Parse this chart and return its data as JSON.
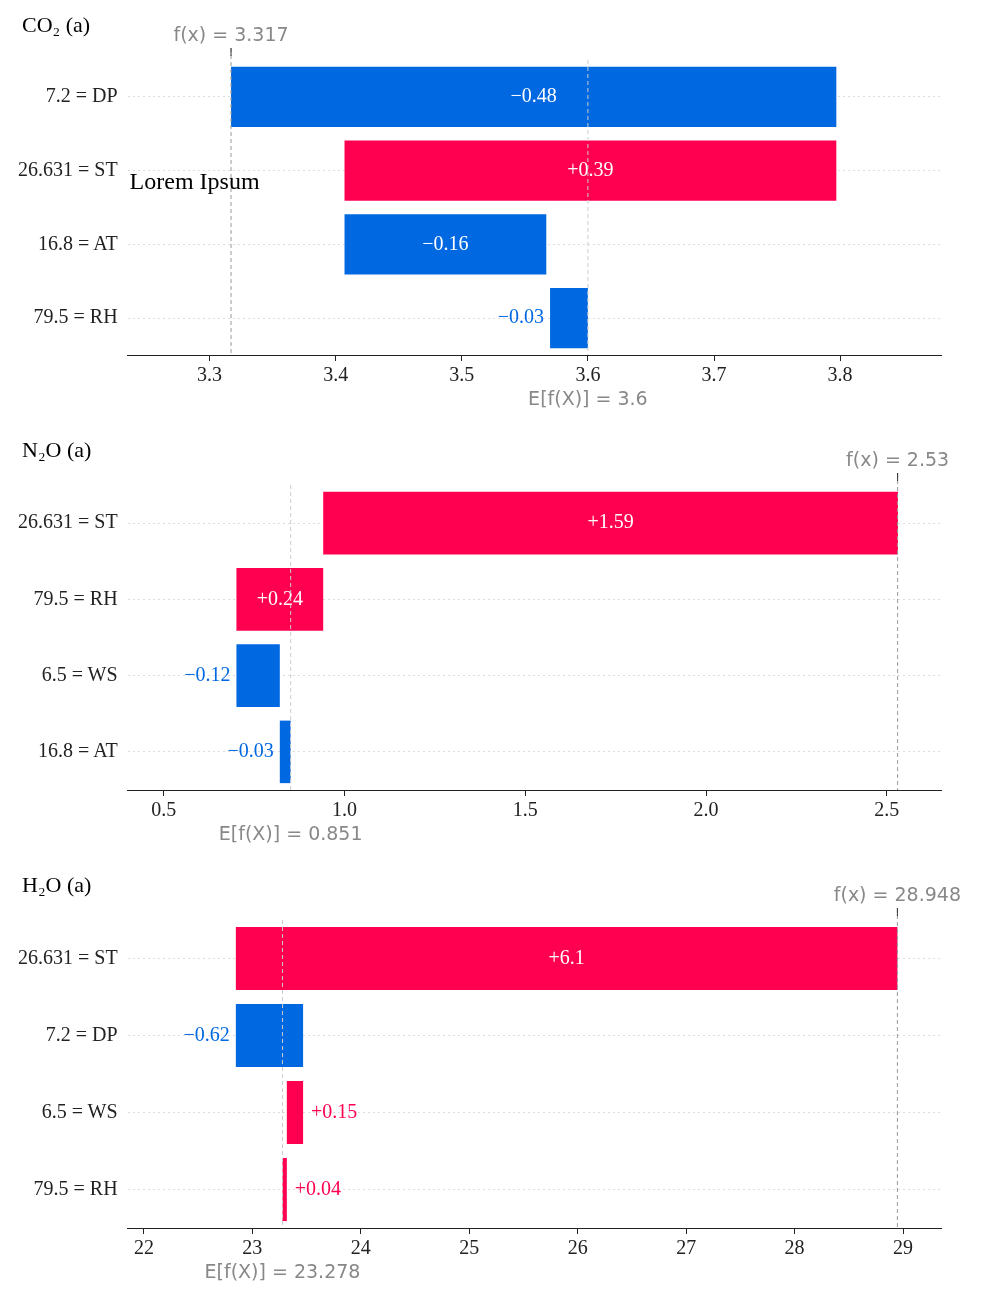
{
  "chart_data": [
    {
      "type": "bar",
      "orientation": "horizontal",
      "title": "CO₂ (a)",
      "categories": [
        "7.2 = DP",
        "26.631 = ST",
        "16.8 = AT",
        "79.5 = RH"
      ],
      "values": [
        -0.48,
        0.39,
        -0.16,
        -0.03
      ],
      "base": [
        3.797,
        3.407,
        3.567,
        3.6
      ],
      "colors": [
        "#0068e0",
        "#ff0051",
        "#0068e0",
        "#0068e0"
      ],
      "value_labels": [
        "−0.48",
        "+0.39",
        "−0.16",
        "−0.03"
      ],
      "xlim": [
        3.235,
        3.88
      ],
      "xticks": [
        3.3,
        3.4,
        3.5,
        3.6,
        3.7,
        3.8
      ],
      "grid": "y",
      "ref_lines": [
        {
          "axis": "x",
          "value": 3.317,
          "label": "f(x) = 3.317",
          "line_style": "dashed",
          "color": "#999999"
        },
        {
          "axis": "x",
          "value": 3.6,
          "label": "E[f(X)] = 3.6",
          "line_style": "dashed",
          "color": "#cccccc"
        }
      ],
      "annotations": [
        "Lorem Ipsum"
      ]
    },
    {
      "type": "bar",
      "orientation": "horizontal",
      "title": "N₂O (a)",
      "categories": [
        "26.631 = ST",
        "79.5 = RH",
        "6.5 = WS",
        "16.8 = AT"
      ],
      "values": [
        1.59,
        0.24,
        -0.12,
        -0.03
      ],
      "base": [
        0.941,
        0.701,
        0.821,
        0.851
      ],
      "colors": [
        "#ff0051",
        "#ff0051",
        "#0068e0",
        "#0068e0"
      ],
      "value_labels": [
        "+1.59",
        "+0.24",
        "−0.12",
        "−0.03"
      ],
      "xlim": [
        0.4,
        2.65
      ],
      "xticks": [
        0.5,
        {
          "value": 1,
          "label": "1.0"
        },
        1.5,
        {
          "value": 2,
          "label": "2.0"
        },
        2.5
      ],
      "grid": "y",
      "ref_lines": [
        {
          "axis": "x",
          "value": 2.53,
          "label": "f(x) = 2.53",
          "line_style": "dashed",
          "color": "#999999"
        },
        {
          "axis": "x",
          "value": 0.851,
          "label": "E[f(X)] = 0.851",
          "line_style": "dashed",
          "color": "#cccccc"
        }
      ]
    },
    {
      "type": "bar",
      "orientation": "horizontal",
      "title": "H₂O (a)",
      "categories": [
        "26.631 = ST",
        "7.2 = DP",
        "6.5 = WS",
        "79.5 = RH"
      ],
      "values": [
        6.1,
        -0.62,
        0.15,
        0.04
      ],
      "base": [
        22.848,
        23.468,
        23.318,
        23.278
      ],
      "colors": [
        "#ff0051",
        "#0068e0",
        "#ff0051",
        "#ff0051"
      ],
      "value_labels": [
        "+6.1",
        "−0.62",
        "+0.15",
        "+0.04"
      ],
      "xlim": [
        21.85,
        29.35
      ],
      "xticks": [
        22,
        23,
        24,
        25,
        26,
        27,
        28,
        29
      ],
      "grid": "y",
      "ref_lines": [
        {
          "axis": "x",
          "value": 28.948,
          "label": "f(x) = 28.948",
          "line_style": "dashed",
          "color": "#999999"
        },
        {
          "axis": "x",
          "value": 23.278,
          "label": "E[f(X)] = 23.278",
          "line_style": "dashed",
          "color": "#cccccc"
        }
      ]
    }
  ]
}
